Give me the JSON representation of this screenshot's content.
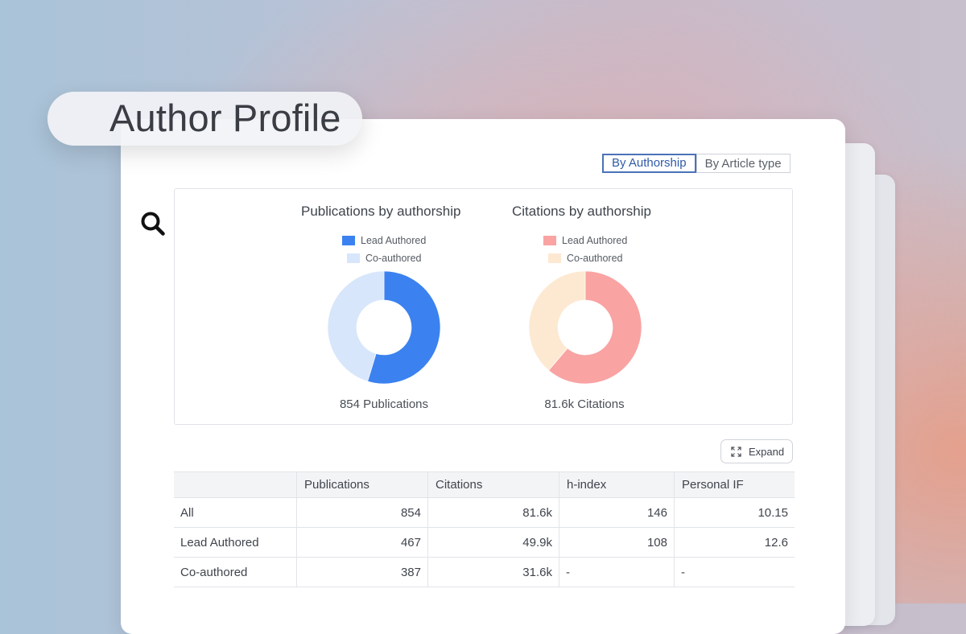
{
  "search": {
    "title": "Author Profile",
    "icon": "search-icon"
  },
  "toggle": {
    "by_authorship": "By Authorship",
    "by_article_type": "By Article type"
  },
  "charts": {
    "publications": {
      "title": "Publications by authorship",
      "legend": [
        "Lead Authored",
        "Co-authored"
      ],
      "colors": [
        "#3b82f0",
        "#d7e6fb"
      ],
      "total_label": "854 Publications"
    },
    "citations": {
      "title": "Citations by authorship",
      "legend": [
        "Lead Authored",
        "Co-authored"
      ],
      "colors": [
        "#f9a3a3",
        "#fde9d2"
      ],
      "total_label": "81.6k Citations"
    }
  },
  "chart_data": [
    {
      "type": "pie",
      "title": "Publications by authorship",
      "categories": [
        "Lead Authored",
        "Co-authored"
      ],
      "values": [
        467,
        387
      ]
    },
    {
      "type": "pie",
      "title": "Citations by authorship",
      "categories": [
        "Lead Authored",
        "Co-authored"
      ],
      "values": [
        49.9,
        31.6
      ]
    }
  ],
  "expand": {
    "label": "Expand",
    "icon": "expand-icon"
  },
  "table": {
    "headers": [
      "",
      "Publications",
      "Citations",
      "h-index",
      "Personal IF"
    ],
    "rows": [
      [
        "All",
        "854",
        "81.6k",
        "146",
        "10.15"
      ],
      [
        "Lead Authored",
        "467",
        "49.9k",
        "108",
        "12.6"
      ],
      [
        "Co-authored",
        "387",
        "31.6k",
        "-",
        "-"
      ]
    ]
  }
}
